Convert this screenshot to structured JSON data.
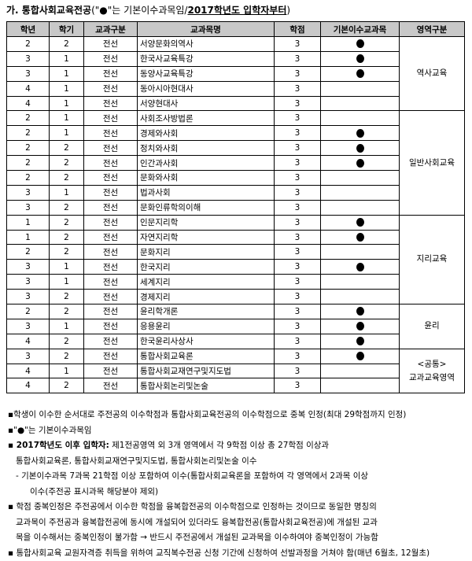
{
  "title": {
    "prefix": "가. 통합사회교육전공",
    "mid": "(\"●\"는 기본이수과목임/",
    "bold": "2017학년도 입학자부터",
    "suffix": ")"
  },
  "headers": [
    "학년",
    "학기",
    "교과구분",
    "교과목명",
    "학점",
    "기본이수교과목",
    "영역구분"
  ],
  "groups": [
    {
      "area": "역사교육",
      "rows": [
        [
          "2",
          "2",
          "전선",
          "서양문화의역사",
          "3",
          true
        ],
        [
          "3",
          "1",
          "전선",
          "한국사교육특강",
          "3",
          true
        ],
        [
          "3",
          "1",
          "전선",
          "동양사교육특강",
          "3",
          true
        ],
        [
          "4",
          "1",
          "전선",
          "동아시아현대사",
          "3",
          false
        ],
        [
          "4",
          "1",
          "전선",
          "서양현대사",
          "3",
          false
        ]
      ]
    },
    {
      "area": "일반사회교육",
      "rows": [
        [
          "2",
          "1",
          "전선",
          "사회조사방법론",
          "3",
          false
        ],
        [
          "2",
          "1",
          "전선",
          "경제와사회",
          "3",
          true
        ],
        [
          "2",
          "2",
          "전선",
          "정치와사회",
          "3",
          true
        ],
        [
          "2",
          "2",
          "전선",
          "인간과사회",
          "3",
          true
        ],
        [
          "2",
          "2",
          "전선",
          "문화와사회",
          "3",
          false
        ],
        [
          "3",
          "1",
          "전선",
          "법과사회",
          "3",
          false
        ],
        [
          "3",
          "2",
          "전선",
          "문화인류학의이해",
          "3",
          false
        ]
      ]
    },
    {
      "area": "지리교육",
      "rows": [
        [
          "1",
          "2",
          "전선",
          "인문지리학",
          "3",
          true
        ],
        [
          "1",
          "2",
          "전선",
          "자연지리학",
          "3",
          true
        ],
        [
          "2",
          "2",
          "전선",
          "문화지리",
          "3",
          false
        ],
        [
          "3",
          "1",
          "전선",
          "한국지리",
          "3",
          true
        ],
        [
          "3",
          "1",
          "전선",
          "세계지리",
          "3",
          false
        ],
        [
          "3",
          "2",
          "전선",
          "경제지리",
          "3",
          false
        ]
      ]
    },
    {
      "area": "윤리",
      "rows": [
        [
          "2",
          "2",
          "전선",
          "윤리학개론",
          "3",
          true
        ],
        [
          "3",
          "1",
          "전선",
          "응용윤리",
          "3",
          true
        ],
        [
          "4",
          "2",
          "전선",
          "한국윤리사상사",
          "3",
          true
        ]
      ]
    },
    {
      "area": "<공통>\n교과교육영역",
      "rows": [
        [
          "3",
          "2",
          "전선",
          "통합사회교육론",
          "3",
          true
        ],
        [
          "4",
          "1",
          "전선",
          "통합사회교재연구및지도법",
          "3",
          false
        ],
        [
          "4",
          "2",
          "전선",
          "통합사회논리및논술",
          "3",
          false
        ]
      ]
    }
  ],
  "notes": {
    "n1": "▪학생이 이수한 순서대로 주전공의 이수학점과 통합사회교육전공의 이수학점으로 중복 인정(최대 29학점까지 인정)",
    "n2": "▪\"●\"는 기본이수과목임",
    "n3_bold": "▪ 2017학년도 이후 입학자:",
    "n3": " 제1전공영역 외 3개 영역에서 각 9학점 이상 총 27학점 이상과",
    "n3b": "통합사회교육론, 통합사회교재연구및지도법, 통합사회논리및논술 이수",
    "n4": "- 기본이수과목 7과목 21학점 이상 포함하여 이수(통합사회교육론을 포함하여 각 영역에서 2과목 이상",
    "n4b": "이수(주전공 표시과목 해당분야 제외)",
    "n5": "▪ 학점 중복인정은 주전공에서 이수한 학점을 융복합전공의 이수학점으로 인정하는 것이므로 동일한 명칭의",
    "n5b": "교과목이 주전공과 융복합전공에 동시에 개설되어 있더라도 융복합전공(통합사회교육전공)에 개설된 교과",
    "n5c": "목을 이수해서는 중복인정이 불가함 → 반드시 주전공에서 개설된 교과목을 이수하여야 중복인정이 가능함",
    "n6": "▪ 통합사회교육 교원자격증 취득을 위하여 교직복수전공 신청 기간에 신청하여 선발과정을 거쳐야 함(매년 6월초, 12월초)"
  }
}
